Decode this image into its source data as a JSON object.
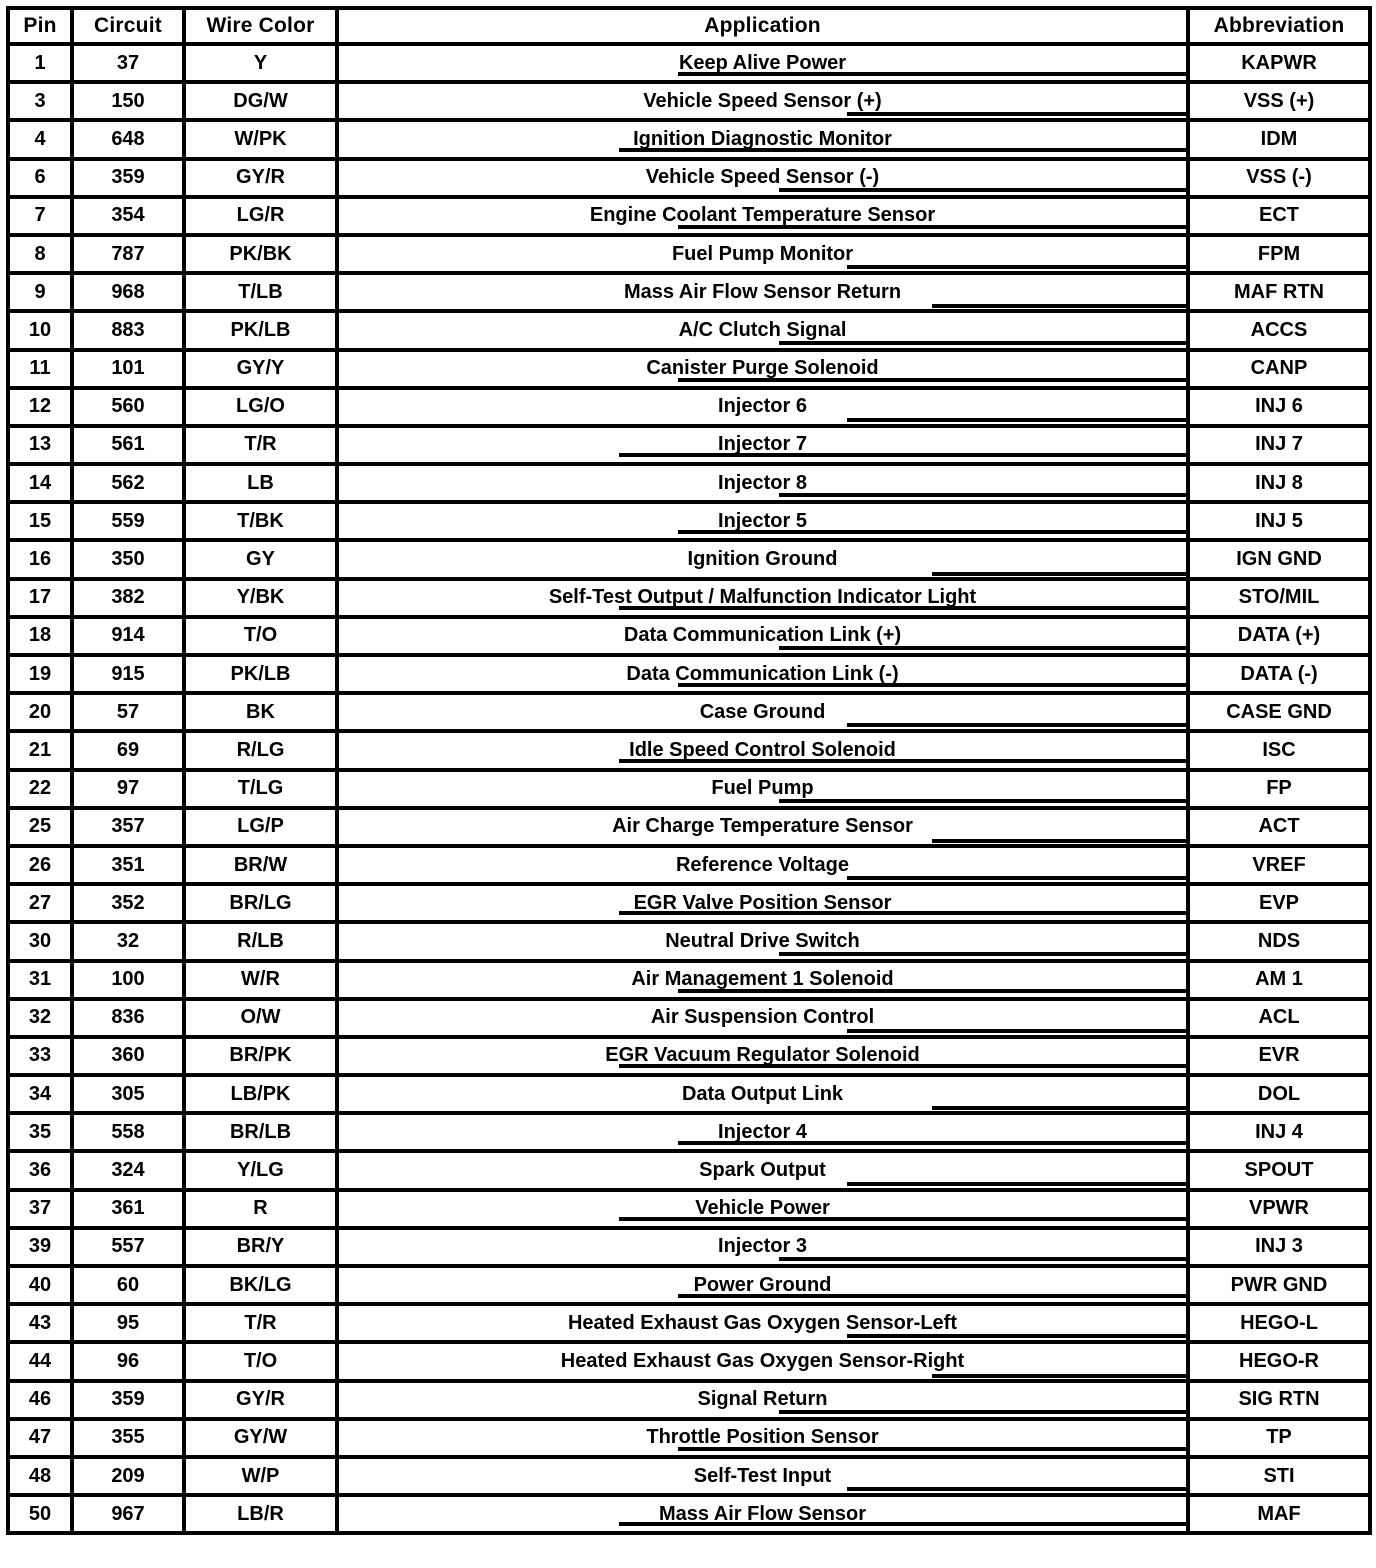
{
  "table": {
    "headers": [
      "Pin",
      "Circuit",
      "Wire Color",
      "Application",
      "Abbreviation"
    ],
    "rows": [
      [
        "1",
        "37",
        "Y",
        "Keep Alive Power",
        "KAPWR"
      ],
      [
        "3",
        "150",
        "DG/W",
        "Vehicle Speed Sensor (+)",
        "VSS (+)"
      ],
      [
        "4",
        "648",
        "W/PK",
        "Ignition Diagnostic Monitor",
        "IDM"
      ],
      [
        "6",
        "359",
        "GY/R",
        "Vehicle Speed Sensor (-)",
        "VSS (-)"
      ],
      [
        "7",
        "354",
        "LG/R",
        "Engine Coolant Temperature Sensor",
        "ECT"
      ],
      [
        "8",
        "787",
        "PK/BK",
        "Fuel Pump Monitor",
        "FPM"
      ],
      [
        "9",
        "968",
        "T/LB",
        "Mass Air Flow Sensor Return",
        "MAF RTN"
      ],
      [
        "10",
        "883",
        "PK/LB",
        "A/C Clutch Signal",
        "ACCS"
      ],
      [
        "11",
        "101",
        "GY/Y",
        "Canister Purge Solenoid",
        "CANP"
      ],
      [
        "12",
        "560",
        "LG/O",
        "Injector 6",
        "INJ 6"
      ],
      [
        "13",
        "561",
        "T/R",
        "Injector 7",
        "INJ 7"
      ],
      [
        "14",
        "562",
        "LB",
        "Injector 8",
        "INJ 8"
      ],
      [
        "15",
        "559",
        "T/BK",
        "Injector 5",
        "INJ 5"
      ],
      [
        "16",
        "350",
        "GY",
        "Ignition Ground",
        "IGN GND"
      ],
      [
        "17",
        "382",
        "Y/BK",
        "Self-Test Output / Malfunction Indicator Light",
        "STO/MIL"
      ],
      [
        "18",
        "914",
        "T/O",
        "Data Communication Link (+)",
        "DATA (+)"
      ],
      [
        "19",
        "915",
        "PK/LB",
        "Data Communication Link (-)",
        "DATA (-)"
      ],
      [
        "20",
        "57",
        "BK",
        "Case Ground",
        "CASE GND"
      ],
      [
        "21",
        "69",
        "R/LG",
        "Idle Speed Control Solenoid",
        "ISC"
      ],
      [
        "22",
        "97",
        "T/LG",
        "Fuel Pump",
        "FP"
      ],
      [
        "25",
        "357",
        "LG/P",
        "Air Charge Temperature Sensor",
        "ACT"
      ],
      [
        "26",
        "351",
        "BR/W",
        "Reference Voltage",
        "VREF"
      ],
      [
        "27",
        "352",
        "BR/LG",
        "EGR Valve Position Sensor",
        "EVP"
      ],
      [
        "30",
        "32",
        "R/LB",
        "Neutral Drive Switch",
        "NDS"
      ],
      [
        "31",
        "100",
        "W/R",
        "Air Management 1 Solenoid",
        "AM 1"
      ],
      [
        "32",
        "836",
        "O/W",
        "Air Suspension Control",
        "ACL"
      ],
      [
        "33",
        "360",
        "BR/PK",
        "EGR Vacuum Regulator Solenoid",
        "EVR"
      ],
      [
        "34",
        "305",
        "LB/PK",
        "Data Output Link",
        "DOL"
      ],
      [
        "35",
        "558",
        "BR/LB",
        "Injector 4",
        "INJ 4"
      ],
      [
        "36",
        "324",
        "Y/LG",
        "Spark Output",
        "SPOUT"
      ],
      [
        "37",
        "361",
        "R",
        "Vehicle Power",
        "VPWR"
      ],
      [
        "39",
        "557",
        "BR/Y",
        "Injector 3",
        "INJ 3"
      ],
      [
        "40",
        "60",
        "BK/LG",
        "Power Ground",
        "PWR GND"
      ],
      [
        "43",
        "95",
        "T/R",
        "Heated Exhaust Gas Oxygen Sensor-Left",
        "HEGO-L"
      ],
      [
        "44",
        "96",
        "T/O",
        "Heated Exhaust Gas Oxygen Sensor-Right",
        "HEGO-R"
      ],
      [
        "46",
        "359",
        "GY/R",
        "Signal Return",
        "SIG RTN"
      ],
      [
        "47",
        "355",
        "GY/W",
        "Throttle Position Sensor",
        "TP"
      ],
      [
        "48",
        "209",
        "W/P",
        "Self-Test Input",
        "STI"
      ],
      [
        "50",
        "967",
        "LB/R",
        "Mass Air Flow Sensor",
        "MAF"
      ]
    ]
  }
}
